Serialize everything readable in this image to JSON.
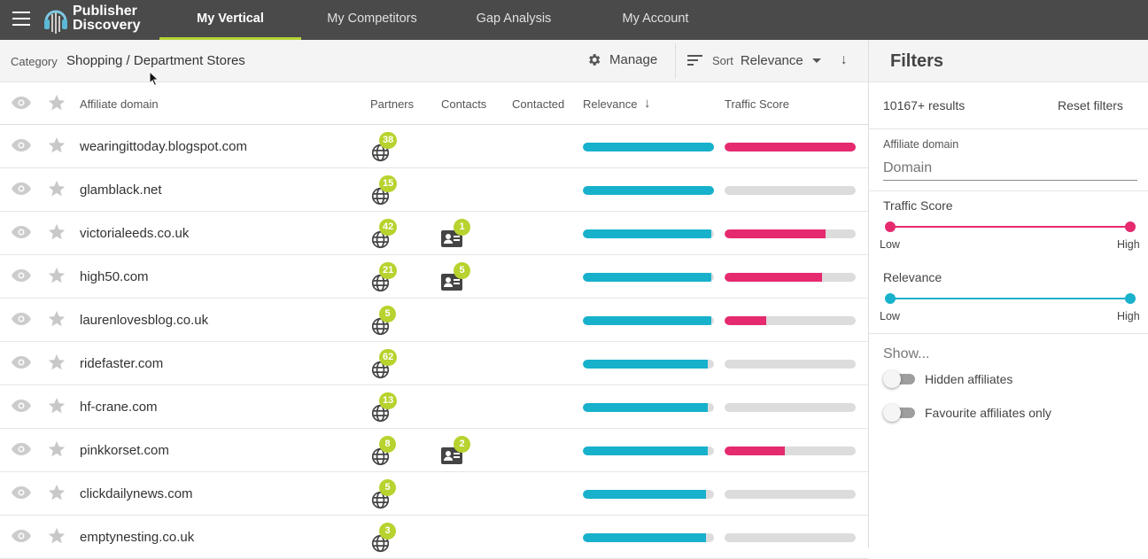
{
  "app": {
    "logo_line1": "Publisher",
    "logo_line2": "Discovery",
    "nav": [
      {
        "label": "My Vertical",
        "active": true
      },
      {
        "label": "My Competitors"
      },
      {
        "label": "Gap Analysis"
      },
      {
        "label": "My Account"
      }
    ]
  },
  "toolbar": {
    "category_label": "Category",
    "category_value": "Shopping / Department Stores",
    "manage_label": "Manage",
    "sort_label": "Sort",
    "sort_value": "Relevance"
  },
  "table": {
    "headers": {
      "domain": "Affiliate domain",
      "partners": "Partners",
      "contacts": "Contacts",
      "contacted": "Contacted",
      "relevance": "Relevance",
      "traffic": "Traffic Score"
    },
    "rows": [
      {
        "domain": "wearingittoday.blogspot.com",
        "partners": "38",
        "contacts": "",
        "relevance": 1.0,
        "traffic": 1.0
      },
      {
        "domain": "glamblack.net",
        "partners": "15",
        "contacts": "",
        "relevance": 1.0,
        "traffic": 0.0
      },
      {
        "domain": "victorialeeds.co.uk",
        "partners": "42",
        "contacts": "1",
        "relevance": 0.98,
        "traffic": 0.77
      },
      {
        "domain": "high50.com",
        "partners": "21",
        "contacts": "5",
        "relevance": 0.98,
        "traffic": 0.74
      },
      {
        "domain": "laurenlovesblog.co.uk",
        "partners": "5",
        "contacts": "",
        "relevance": 0.98,
        "traffic": 0.32
      },
      {
        "domain": "ridefaster.com",
        "partners": "62",
        "contacts": "",
        "relevance": 0.95,
        "traffic": 0.0
      },
      {
        "domain": "hf-crane.com",
        "partners": "13",
        "contacts": "",
        "relevance": 0.95,
        "traffic": 0.0
      },
      {
        "domain": "pinkkorset.com",
        "partners": "8",
        "contacts": "2",
        "relevance": 0.95,
        "traffic": 0.46
      },
      {
        "domain": "clickdailynews.com",
        "partners": "5",
        "contacts": "",
        "relevance": 0.94,
        "traffic": 0.0
      },
      {
        "domain": "emptynesting.co.uk",
        "partners": "3",
        "contacts": "",
        "relevance": 0.94,
        "traffic": 0.0
      }
    ]
  },
  "filters": {
    "title": "Filters",
    "results": "10167+ results",
    "reset_label": "Reset filters",
    "domain_label": "Affiliate domain",
    "domain_placeholder": "Domain",
    "traffic_label": "Traffic Score",
    "relevance_label": "Relevance",
    "low_label": "Low",
    "high_label": "High",
    "show_label": "Show...",
    "hidden_label": "Hidden affiliates",
    "favourite_label": "Favourite affiliates only"
  },
  "colors": {
    "topbar": "#4a4a4a",
    "accent_green": "#b8d22e",
    "relevance": "#17b1cc",
    "traffic": "#e52a6f"
  }
}
